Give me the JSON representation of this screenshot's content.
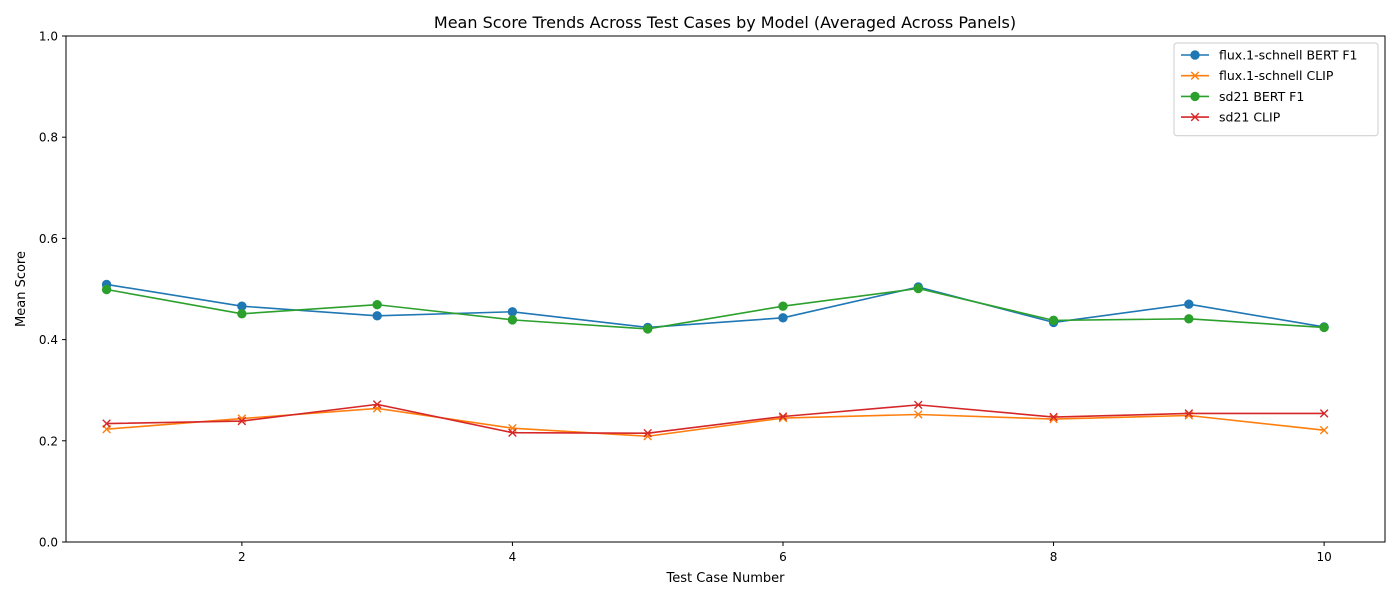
{
  "chart_data": {
    "type": "line",
    "title": "Mean Score Trends Across Test Cases by Model (Averaged Across Panels)",
    "xlabel": "Test Case Number",
    "ylabel": "Mean Score",
    "xlim": [
      0.7,
      10.45
    ],
    "ylim": [
      0.0,
      1.0
    ],
    "x": [
      1,
      2,
      3,
      4,
      5,
      6,
      7,
      8,
      9,
      10
    ],
    "x_ticks": [
      2,
      4,
      6,
      8,
      10
    ],
    "y_ticks": [
      0.0,
      0.2,
      0.4,
      0.6,
      0.8,
      1.0
    ],
    "y_tick_labels": [
      "0.0",
      "0.2",
      "0.4",
      "0.6",
      "0.8",
      "1.0"
    ],
    "grid": false,
    "legend_position": "top-right",
    "series": [
      {
        "name": "flux.1-schnell BERT F1",
        "color": "#1f77b4",
        "marker": "circle",
        "values": [
          0.509,
          0.466,
          0.447,
          0.455,
          0.424,
          0.443,
          0.504,
          0.434,
          0.47,
          0.425
        ]
      },
      {
        "name": "flux.1-schnell CLIP",
        "color": "#ff7f0e",
        "marker": "x",
        "values": [
          0.223,
          0.244,
          0.264,
          0.225,
          0.209,
          0.245,
          0.252,
          0.243,
          0.25,
          0.221
        ]
      },
      {
        "name": "sd21 BERT F1",
        "color": "#2ca02c",
        "marker": "circle",
        "values": [
          0.499,
          0.451,
          0.469,
          0.439,
          0.421,
          0.466,
          0.501,
          0.438,
          0.441,
          0.424
        ]
      },
      {
        "name": "sd21 CLIP",
        "color": "#d62728",
        "marker": "x",
        "values": [
          0.234,
          0.239,
          0.272,
          0.216,
          0.215,
          0.248,
          0.271,
          0.247,
          0.254,
          0.254
        ]
      }
    ]
  }
}
